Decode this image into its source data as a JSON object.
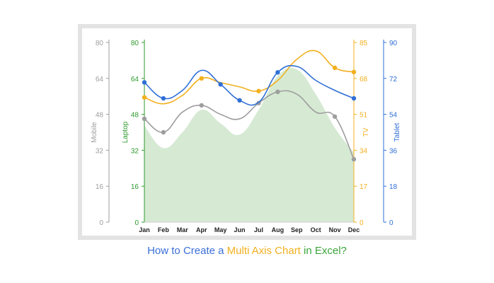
{
  "caption": {
    "part1": "How to Create a ",
    "part2": "Multi Axis Chart",
    "part3": " in Excel?",
    "colors": [
      "#3a6fd8",
      "#f2b01e",
      "#3aa33a"
    ]
  },
  "chart_data": {
    "type": "line",
    "categories": [
      "Jan",
      "Feb",
      "Mar",
      "Apr",
      "May",
      "Jun",
      "Jul",
      "Aug",
      "Sep",
      "Oct",
      "Nov",
      "Dec"
    ],
    "grid": false,
    "legend": "none",
    "axes": [
      {
        "id": "mobile",
        "label": "Mobile",
        "side": "left-outer",
        "ylim": [
          0,
          80
        ],
        "ticks": [
          0,
          16,
          32,
          48,
          64,
          80
        ],
        "color": "#9e9e9e"
      },
      {
        "id": "laptop",
        "label": "Laptop",
        "side": "left-inner",
        "ylim": [
          0,
          80
        ],
        "ticks": [
          0,
          16,
          32,
          48,
          64,
          80
        ],
        "color": "#2e9a2e"
      },
      {
        "id": "tv",
        "label": "TV",
        "side": "right-inner",
        "ylim": [
          0,
          85
        ],
        "ticks": [
          0,
          17,
          34,
          51,
          68,
          85
        ],
        "color": "#f2b01e"
      },
      {
        "id": "tablet",
        "label": "Tablet",
        "side": "right-outer",
        "ylim": [
          0,
          90
        ],
        "ticks": [
          0,
          18,
          36,
          54,
          72,
          90
        ],
        "color": "#2f6fd6"
      }
    ],
    "series": [
      {
        "name": "Laptop",
        "axis": "laptop",
        "kind": "area",
        "color": "#2e9a2e",
        "fill": "#d6ead3",
        "values": [
          43,
          33,
          40,
          50,
          44,
          39,
          50,
          65,
          68,
          57,
          42,
          31
        ]
      },
      {
        "name": "Mobile",
        "axis": "mobile",
        "kind": "line",
        "color": "#9e9e9e",
        "values": [
          46,
          40,
          49,
          52,
          48,
          46,
          53,
          58,
          57,
          49,
          47,
          28
        ]
      },
      {
        "name": "TV",
        "axis": "tv",
        "kind": "line",
        "color": "#f2b01e",
        "values": [
          59,
          56,
          60,
          68,
          66,
          64,
          62,
          67,
          77,
          81,
          73,
          71
        ]
      },
      {
        "name": "Tablet",
        "axis": "tablet",
        "kind": "line",
        "color": "#2f6fd6",
        "values": [
          70,
          62,
          66,
          76,
          69,
          61,
          60,
          75,
          78,
          71,
          66,
          62
        ]
      }
    ],
    "markers": {
      "Mobile": [
        0,
        1,
        3,
        6,
        7,
        10,
        11
      ],
      "TV": [
        0,
        3,
        6,
        10,
        11
      ],
      "Tablet": [
        0,
        1,
        4,
        5,
        7,
        11
      ]
    }
  }
}
